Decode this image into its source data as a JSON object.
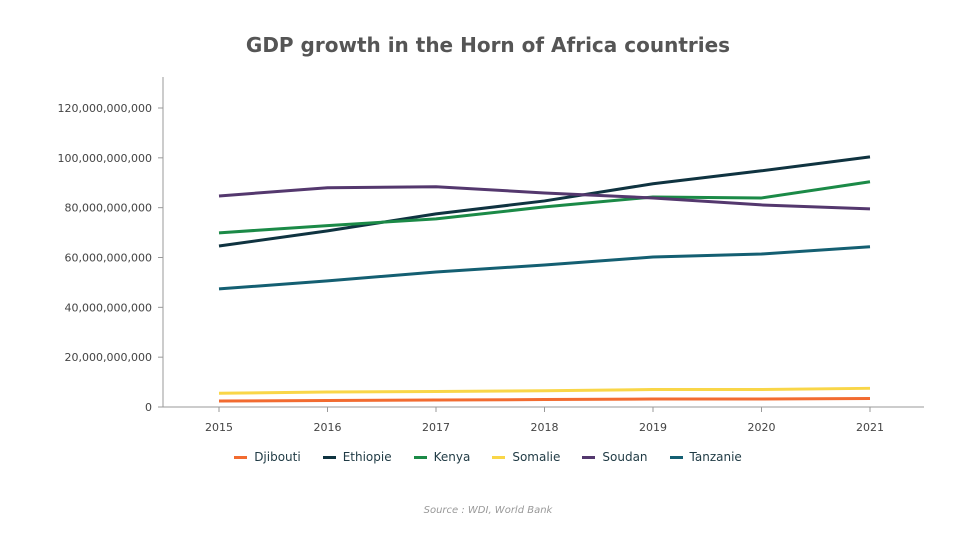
{
  "chart_data": {
    "type": "line",
    "title": "GDP growth in the Horn of Africa countries",
    "x": [
      "2015",
      "2016",
      "2017",
      "2018",
      "2019",
      "2020",
      "2021"
    ],
    "ylim": [
      0,
      120000000000
    ],
    "yticks": [
      "0",
      "20,000,000,000",
      "40,000,000,000",
      "60,000,000,000",
      "80,000,000,000",
      "100,000,000,000",
      "120,000,000,000"
    ],
    "ytick_values": [
      0,
      20000000000,
      40000000000,
      60000000000,
      80000000000,
      100000000000,
      120000000000
    ],
    "legend_position": "bottom",
    "series": [
      {
        "name": "Djibouti",
        "color": "#f26b30",
        "values": [
          2400000000,
          2600000000,
          2800000000,
          3000000000,
          3200000000,
          3200000000,
          3400000000
        ]
      },
      {
        "name": "Ethiopie",
        "color": "#0f3340",
        "values": [
          64600000000,
          70700000000,
          77500000000,
          82700000000,
          89600000000,
          94800000000,
          100400000000
        ]
      },
      {
        "name": "Kenya",
        "color": "#1b8a47",
        "values": [
          69900000000,
          72800000000,
          75500000000,
          80300000000,
          84300000000,
          83900000000,
          90400000000
        ]
      },
      {
        "name": "Somalie",
        "color": "#f9d648",
        "values": [
          5500000000,
          6000000000,
          6200000000,
          6500000000,
          7000000000,
          7000000000,
          7500000000
        ]
      },
      {
        "name": "Soudan",
        "color": "#54386e",
        "values": [
          84700000000,
          88000000000,
          88400000000,
          85900000000,
          83900000000,
          81100000000,
          79500000000
        ]
      },
      {
        "name": "Tanzanie",
        "color": "#145f72",
        "values": [
          47400000000,
          50600000000,
          54200000000,
          57000000000,
          60200000000,
          61400000000,
          64300000000
        ]
      }
    ],
    "source": "Source : WDI, World Bank"
  }
}
